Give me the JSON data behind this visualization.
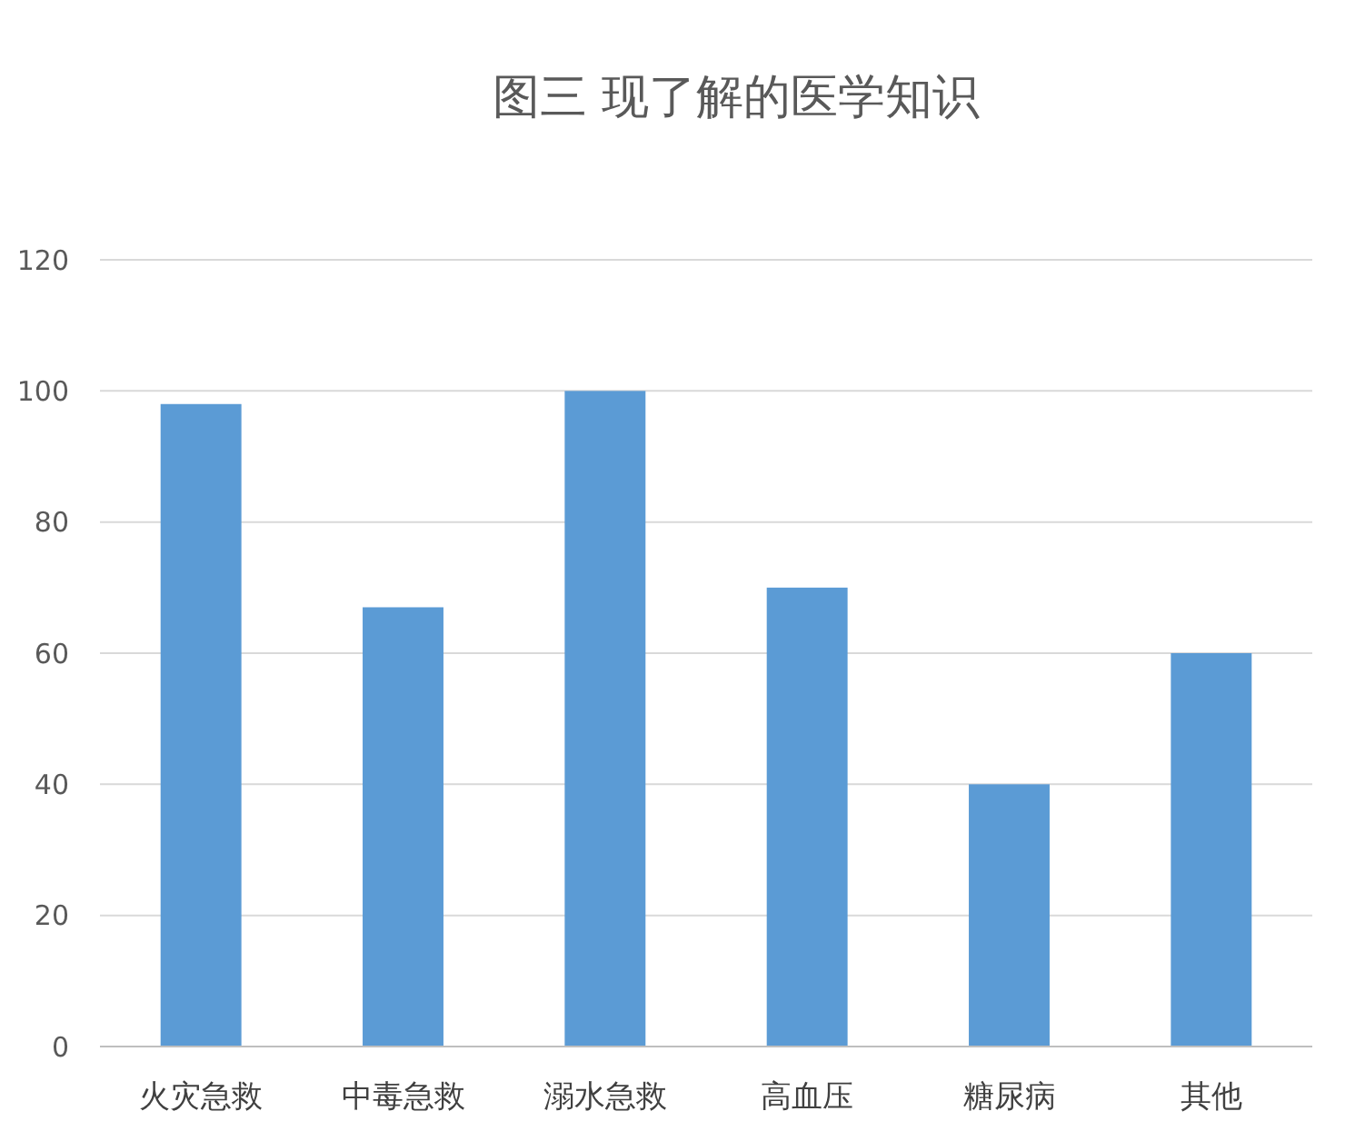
{
  "chart_data": {
    "type": "bar",
    "title": "图三  现了解的医学知识",
    "categories": [
      "火灾急救",
      "中毒急救",
      "溺水急救",
      "高血压",
      "糖尿病",
      "其他"
    ],
    "values": [
      98,
      67,
      100,
      70,
      40,
      60
    ],
    "color": "#5b9bd5",
    "ylim": [
      0,
      120
    ],
    "yticks": [
      0,
      20,
      40,
      60,
      80,
      100,
      120
    ],
    "grid": "y"
  }
}
